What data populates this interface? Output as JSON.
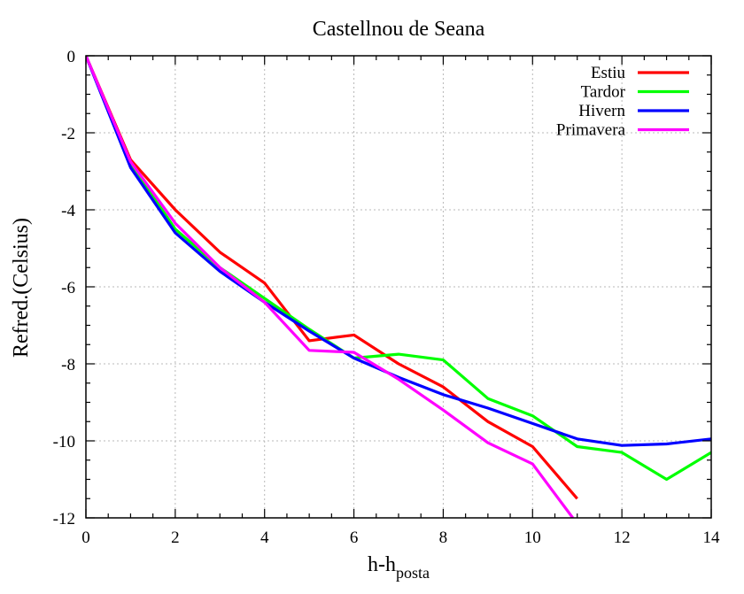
{
  "chart_data": {
    "type": "line",
    "title": "Castellnou de Seana",
    "xlabel_main": "h-h",
    "xlabel_sub": "posta",
    "ylabel": "Refred.(Celsius)",
    "xlim": [
      0,
      14
    ],
    "ylim": [
      -12,
      0
    ],
    "xticks": [
      0,
      2,
      4,
      6,
      8,
      10,
      12,
      14
    ],
    "yticks": [
      0,
      -2,
      -4,
      -6,
      -8,
      -10,
      -12
    ],
    "grid": true,
    "legend_position": "top-right",
    "series": [
      {
        "name": "Estiu",
        "color": "#ff0000",
        "x": [
          0,
          1,
          2,
          3,
          4,
          5,
          6,
          7,
          8,
          9,
          10,
          11
        ],
        "y": [
          0,
          -2.7,
          -4.0,
          -5.1,
          -5.9,
          -7.4,
          -7.25,
          -8.0,
          -8.6,
          -9.5,
          -10.15,
          -11.5
        ]
      },
      {
        "name": "Tardor",
        "color": "#00ff00",
        "x": [
          0,
          1,
          2,
          3,
          4,
          5,
          6,
          7,
          8,
          9,
          10,
          11,
          12,
          13,
          14
        ],
        "y": [
          0,
          -2.8,
          -4.5,
          -5.5,
          -6.3,
          -7.1,
          -7.85,
          -7.75,
          -7.9,
          -8.9,
          -9.35,
          -10.15,
          -10.3,
          -11.0,
          -10.3
        ]
      },
      {
        "name": "Hivern",
        "color": "#0000ff",
        "x": [
          0,
          1,
          2,
          3,
          4,
          5,
          6,
          7,
          8,
          9,
          10,
          11,
          12,
          13,
          14
        ],
        "y": [
          0,
          -2.9,
          -4.6,
          -5.6,
          -6.4,
          -7.15,
          -7.85,
          -8.35,
          -8.8,
          -9.15,
          -9.55,
          -9.95,
          -10.12,
          -10.08,
          -9.95
        ]
      },
      {
        "name": "Primavera",
        "color": "#ff00ff",
        "x": [
          0,
          1,
          2,
          3,
          4,
          5,
          6,
          7,
          8,
          9,
          10,
          10.9
        ],
        "y": [
          0,
          -2.75,
          -4.35,
          -5.5,
          -6.4,
          -7.65,
          -7.7,
          -8.4,
          -9.2,
          -10.05,
          -10.6,
          -12
        ]
      }
    ]
  }
}
